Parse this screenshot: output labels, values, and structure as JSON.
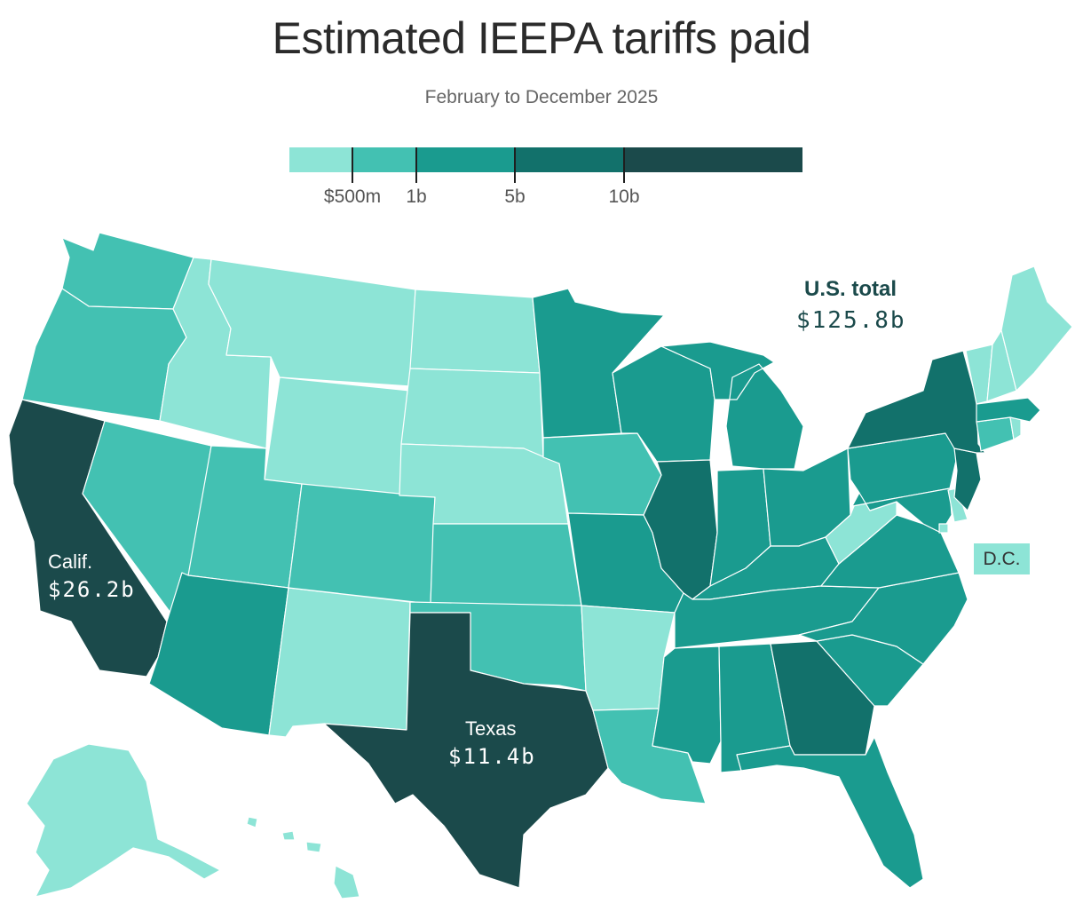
{
  "title": "Estimated IEEPA tariffs paid",
  "subtitle": "February to December 2025",
  "legend": {
    "colors": [
      "#8de4d6",
      "#43c1b2",
      "#1a9b8f",
      "#12716b",
      "#1b4a4b"
    ],
    "thresholds": [
      "$500m",
      "1b",
      "5b",
      "10b"
    ]
  },
  "total": {
    "label": "U.S. total",
    "value": "$125.8b"
  },
  "callouts": {
    "california": {
      "name": "Calif.",
      "value": "$26.2b"
    },
    "texas": {
      "name": "Texas",
      "value": "$11.4b"
    }
  },
  "dc_label": "D.C.",
  "states": {
    "WA": 1,
    "OR": 1,
    "CA": 4,
    "NV": 1,
    "ID": 0,
    "MT": 0,
    "WY": 0,
    "UT": 1,
    "AZ": 2,
    "NM": 0,
    "CO": 1,
    "ND": 0,
    "SD": 0,
    "NE": 0,
    "KS": 1,
    "OK": 1,
    "TX": 4,
    "MN": 2,
    "IA": 1,
    "MO": 2,
    "AR": 0,
    "LA": 1,
    "WI": 2,
    "IL": 3,
    "MI": 2,
    "IN": 2,
    "OH": 2,
    "KY": 2,
    "TN": 2,
    "MS": 2,
    "AL": 2,
    "GA": 3,
    "FL": 2,
    "SC": 2,
    "NC": 2,
    "VA": 2,
    "WV": 0,
    "PA": 2,
    "NY": 3,
    "NJ": 3,
    "DE": 0,
    "MD": 2,
    "CT": 1,
    "RI": 0,
    "MA": 2,
    "VT": 0,
    "NH": 0,
    "ME": 0,
    "AK": 0,
    "HI": 0,
    "DC": 0
  }
}
